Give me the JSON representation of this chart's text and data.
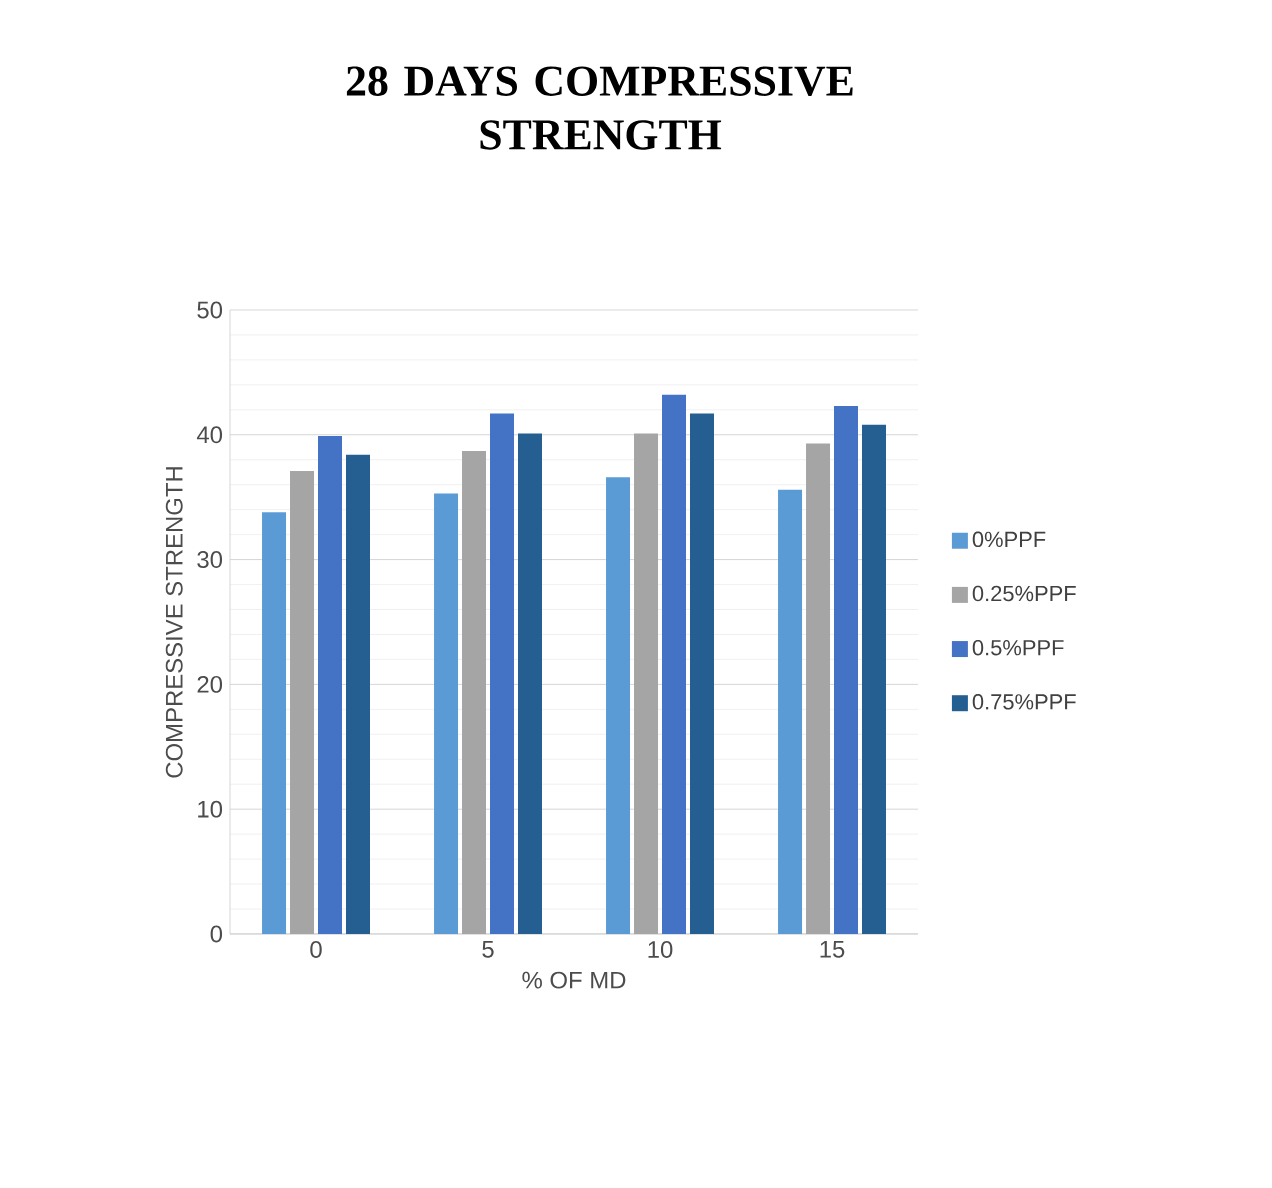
{
  "chart_data": {
    "type": "bar",
    "title": "28 DAYS COMPRESSIVE STRENGTH",
    "xlabel": "% OF MD",
    "ylabel": "COMPRESSIVE STRENGTH",
    "categories": [
      "0",
      "5",
      "10",
      "15"
    ],
    "series": [
      {
        "name": "0%PPF",
        "color": "#5b9bd5",
        "values": [
          33.8,
          35.3,
          36.6,
          35.6
        ]
      },
      {
        "name": "0.25%PPF",
        "color": "#a5a5a5",
        "values": [
          37.1,
          38.7,
          40.1,
          39.3
        ]
      },
      {
        "name": "0.5%PPF",
        "color": "#4472c4",
        "values": [
          39.9,
          41.7,
          43.2,
          42.3
        ]
      },
      {
        "name": "0.75%PPF",
        "color": "#255e91",
        "values": [
          38.4,
          40.1,
          41.7,
          40.8
        ]
      }
    ],
    "ylim": [
      0,
      50
    ],
    "yticks": [
      0,
      10,
      20,
      30,
      40,
      50
    ],
    "grid": "y",
    "legend": "right"
  }
}
